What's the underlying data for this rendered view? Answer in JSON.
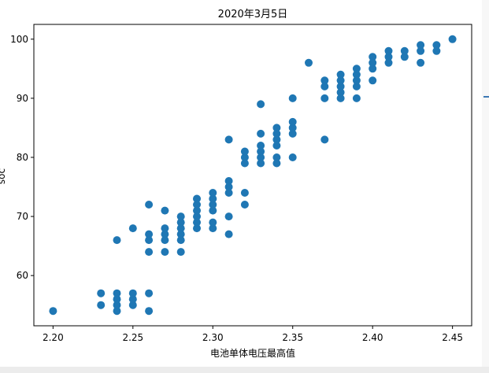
{
  "chart_data": {
    "type": "scatter",
    "title": "2020年3月5日",
    "xlabel": "电池单体电压最高值",
    "ylabel": "soc",
    "xlim": [
      2.188,
      2.462
    ],
    "ylim": [
      51.5,
      102.5
    ],
    "xticks": [
      2.2,
      2.25,
      2.3,
      2.35,
      2.4,
      2.45
    ],
    "xtick_labels": [
      "2.20",
      "2.25",
      "2.30",
      "2.35",
      "2.40",
      "2.45"
    ],
    "yticks": [
      60,
      70,
      80,
      90,
      100
    ],
    "ytick_labels": [
      "60",
      "70",
      "80",
      "90",
      "100"
    ],
    "grid": false,
    "marker_color": "#1f77b4",
    "series": [
      {
        "points": [
          [
            2.2,
            54
          ],
          [
            2.23,
            55
          ],
          [
            2.23,
            57
          ],
          [
            2.24,
            54
          ],
          [
            2.24,
            55
          ],
          [
            2.24,
            56
          ],
          [
            2.24,
            57
          ],
          [
            2.24,
            66
          ],
          [
            2.25,
            55
          ],
          [
            2.25,
            56
          ],
          [
            2.25,
            57
          ],
          [
            2.25,
            68
          ],
          [
            2.26,
            54
          ],
          [
            2.26,
            57
          ],
          [
            2.26,
            64
          ],
          [
            2.26,
            66
          ],
          [
            2.26,
            67
          ],
          [
            2.26,
            72
          ],
          [
            2.27,
            64
          ],
          [
            2.27,
            66
          ],
          [
            2.27,
            67
          ],
          [
            2.27,
            68
          ],
          [
            2.27,
            71
          ],
          [
            2.28,
            64
          ],
          [
            2.28,
            66
          ],
          [
            2.28,
            67
          ],
          [
            2.28,
            68
          ],
          [
            2.28,
            69
          ],
          [
            2.28,
            70
          ],
          [
            2.29,
            68
          ],
          [
            2.29,
            69
          ],
          [
            2.29,
            70
          ],
          [
            2.29,
            71
          ],
          [
            2.29,
            72
          ],
          [
            2.29,
            73
          ],
          [
            2.3,
            68
          ],
          [
            2.3,
            69
          ],
          [
            2.3,
            71
          ],
          [
            2.3,
            72
          ],
          [
            2.3,
            73
          ],
          [
            2.3,
            74
          ],
          [
            2.31,
            67
          ],
          [
            2.31,
            70
          ],
          [
            2.31,
            74
          ],
          [
            2.31,
            75
          ],
          [
            2.31,
            76
          ],
          [
            2.31,
            83
          ],
          [
            2.32,
            72
          ],
          [
            2.32,
            74
          ],
          [
            2.32,
            79
          ],
          [
            2.32,
            80
          ],
          [
            2.32,
            81
          ],
          [
            2.33,
            79
          ],
          [
            2.33,
            80
          ],
          [
            2.33,
            81
          ],
          [
            2.33,
            82
          ],
          [
            2.33,
            84
          ],
          [
            2.33,
            89
          ],
          [
            2.34,
            79
          ],
          [
            2.34,
            80
          ],
          [
            2.34,
            82
          ],
          [
            2.34,
            83
          ],
          [
            2.34,
            84
          ],
          [
            2.34,
            85
          ],
          [
            2.35,
            80
          ],
          [
            2.35,
            84
          ],
          [
            2.35,
            85
          ],
          [
            2.35,
            86
          ],
          [
            2.35,
            90
          ],
          [
            2.36,
            96
          ],
          [
            2.37,
            83
          ],
          [
            2.37,
            90
          ],
          [
            2.37,
            92
          ],
          [
            2.37,
            93
          ],
          [
            2.38,
            90
          ],
          [
            2.38,
            91
          ],
          [
            2.38,
            92
          ],
          [
            2.38,
            93
          ],
          [
            2.38,
            94
          ],
          [
            2.39,
            90
          ],
          [
            2.39,
            92
          ],
          [
            2.39,
            93
          ],
          [
            2.39,
            94
          ],
          [
            2.39,
            95
          ],
          [
            2.4,
            93
          ],
          [
            2.4,
            95
          ],
          [
            2.4,
            96
          ],
          [
            2.4,
            97
          ],
          [
            2.41,
            96
          ],
          [
            2.41,
            97
          ],
          [
            2.41,
            98
          ],
          [
            2.42,
            97
          ],
          [
            2.42,
            98
          ],
          [
            2.43,
            96
          ],
          [
            2.43,
            98
          ],
          [
            2.43,
            99
          ],
          [
            2.44,
            98
          ],
          [
            2.44,
            99
          ],
          [
            2.45,
            100
          ]
        ]
      }
    ]
  }
}
